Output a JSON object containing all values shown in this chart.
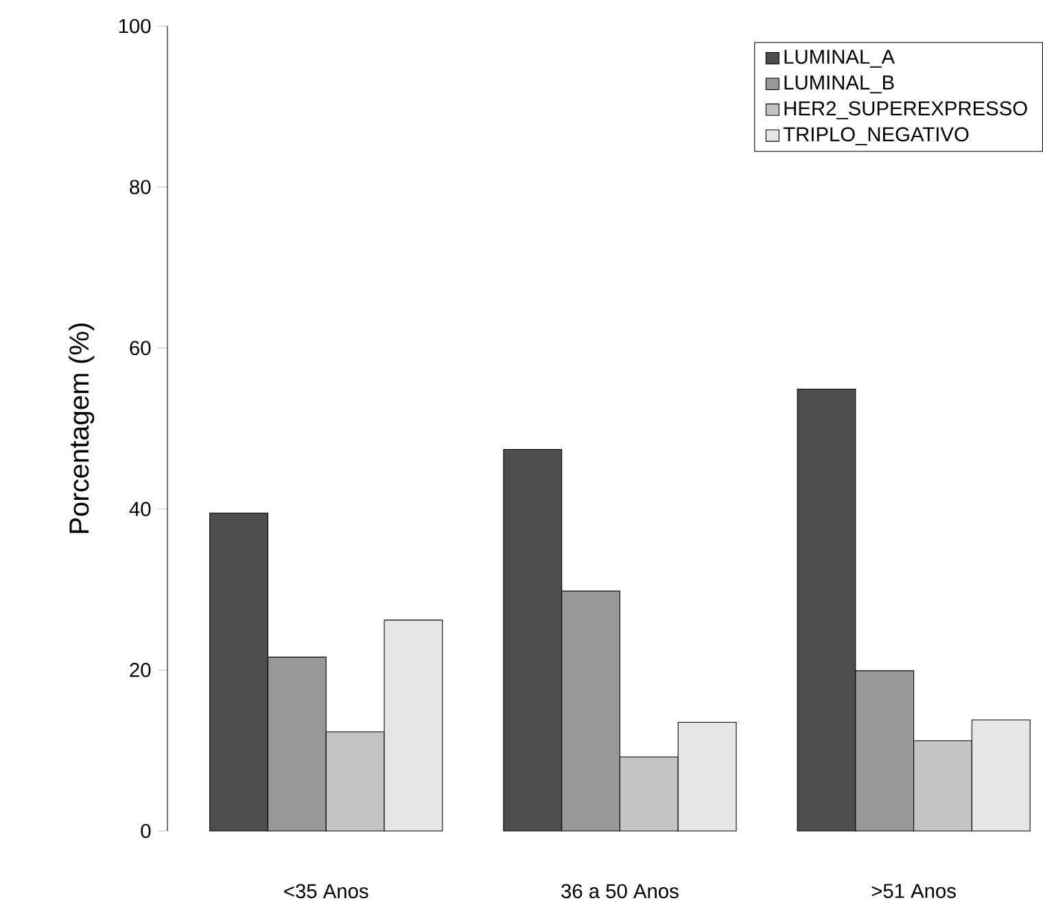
{
  "chart_data": {
    "type": "bar",
    "ylabel": "Porcentagem   (%)",
    "categories": [
      "<35 Anos",
      "36 a 50 Anos",
      ">51 Anos"
    ],
    "series": [
      {
        "name": "LUMINAL_A",
        "color": "#4d4d4d",
        "values": [
          39.5,
          47.4,
          54.9
        ]
      },
      {
        "name": "LUMINAL_B",
        "color": "#989898",
        "values": [
          21.6,
          29.8,
          19.9
        ]
      },
      {
        "name": "HER2_SUPEREXPRESSO",
        "color": "#c4c4c4",
        "values": [
          12.3,
          9.2,
          11.2
        ]
      },
      {
        "name": "TRIPLO_NEGATIVO",
        "color": "#e6e6e6",
        "values": [
          26.2,
          13.5,
          13.8
        ]
      }
    ],
    "ylim": [
      0,
      100
    ],
    "yticks": [
      0,
      20,
      40,
      60,
      80,
      100
    ],
    "legend": "top right"
  }
}
